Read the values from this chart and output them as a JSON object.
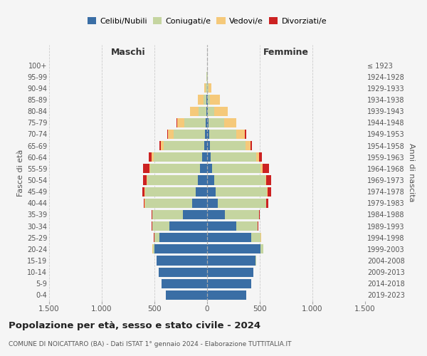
{
  "age_groups": [
    "0-4",
    "5-9",
    "10-14",
    "15-19",
    "20-24",
    "25-29",
    "30-34",
    "35-39",
    "40-44",
    "45-49",
    "50-54",
    "55-59",
    "60-64",
    "65-69",
    "70-74",
    "75-79",
    "80-84",
    "85-89",
    "90-94",
    "95-99",
    "100+"
  ],
  "birth_years": [
    "2019-2023",
    "2014-2018",
    "2009-2013",
    "2004-2008",
    "1999-2003",
    "1994-1998",
    "1989-1993",
    "1984-1988",
    "1979-1983",
    "1974-1978",
    "1969-1973",
    "1964-1968",
    "1959-1963",
    "1954-1958",
    "1949-1953",
    "1944-1948",
    "1939-1943",
    "1934-1938",
    "1929-1933",
    "1924-1928",
    "≤ 1923"
  ],
  "colors": {
    "celibi": "#3a6ea5",
    "coniugati": "#c5d5a0",
    "vedovi": "#f5c97a",
    "divorziati": "#cc2222"
  },
  "males": {
    "celibi": [
      390,
      430,
      460,
      480,
      500,
      450,
      360,
      230,
      140,
      110,
      90,
      70,
      50,
      30,
      20,
      15,
      10,
      5,
      3,
      2,
      2
    ],
    "coniugati": [
      0,
      0,
      0,
      2,
      15,
      50,
      160,
      290,
      450,
      480,
      480,
      470,
      460,
      380,
      300,
      200,
      70,
      30,
      10,
      2,
      0
    ],
    "vedovi": [
      0,
      0,
      0,
      0,
      2,
      2,
      2,
      2,
      2,
      3,
      5,
      10,
      15,
      30,
      50,
      70,
      80,
      50,
      15,
      3,
      0
    ],
    "divorziati": [
      0,
      0,
      0,
      0,
      0,
      2,
      5,
      8,
      10,
      20,
      30,
      55,
      30,
      10,
      10,
      5,
      0,
      0,
      0,
      0,
      0
    ]
  },
  "females": {
    "nubili": [
      370,
      420,
      440,
      460,
      510,
      420,
      280,
      170,
      100,
      80,
      65,
      50,
      35,
      25,
      20,
      15,
      10,
      5,
      3,
      2,
      2
    ],
    "coniugate": [
      0,
      0,
      0,
      5,
      25,
      90,
      200,
      320,
      460,
      490,
      490,
      460,
      430,
      340,
      260,
      150,
      55,
      25,
      8,
      2,
      0
    ],
    "vedove": [
      0,
      0,
      0,
      0,
      2,
      2,
      2,
      2,
      3,
      5,
      8,
      15,
      25,
      50,
      80,
      110,
      130,
      90,
      30,
      5,
      0
    ],
    "divorziate": [
      0,
      0,
      0,
      0,
      0,
      2,
      5,
      8,
      15,
      30,
      45,
      60,
      30,
      10,
      10,
      5,
      0,
      0,
      0,
      0,
      0
    ]
  },
  "xlim": 1500,
  "xticks": [
    -1500,
    -1000,
    -500,
    0,
    500,
    1000,
    1500
  ],
  "xticklabels": [
    "1.500",
    "1.000",
    "500",
    "0",
    "500",
    "1.000",
    "1.500"
  ],
  "title": "Popolazione per età, sesso e stato civile - 2024",
  "subtitle": "COMUNE DI NOICATTARO (BA) - Dati ISTAT 1° gennaio 2024 - Elaborazione TUTTITALIA.IT",
  "ylabel_left": "Fasce di età",
  "ylabel_right": "Anni di nascita",
  "header_left": "Maschi",
  "header_right": "Femmine",
  "bg_color": "#f5f5f5",
  "grid_color": "#cccccc"
}
